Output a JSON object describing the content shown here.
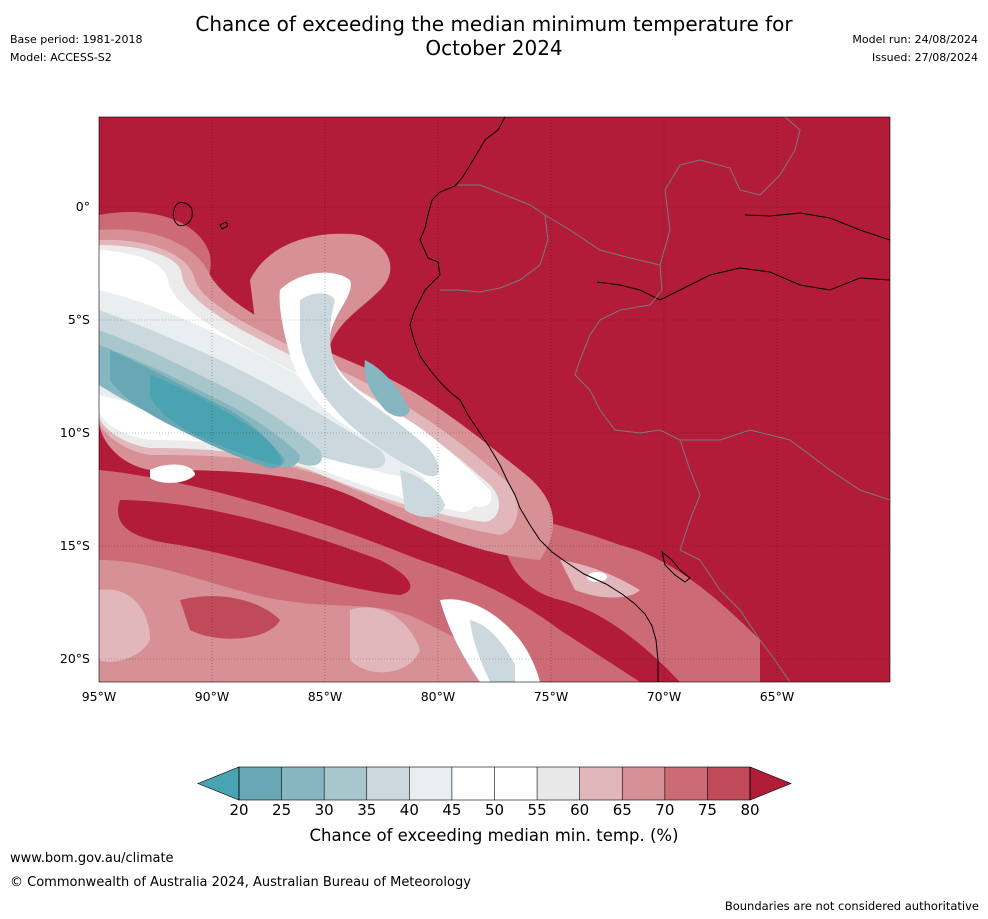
{
  "title": {
    "line1": "Chance of exceeding the median minimum temperature for",
    "line2": "October 2024"
  },
  "meta_left": {
    "base_period": "Base period: 1981-2018",
    "model": "Model: ACCESS-S2"
  },
  "meta_right": {
    "model_run": "Model run: 24/08/2024",
    "issued": "Issued: 27/08/2024"
  },
  "map": {
    "lat_labels": [
      "0°",
      "5°S",
      "10°S",
      "15°S",
      "20°S"
    ],
    "lon_labels": [
      "95°W",
      "90°W",
      "85°W",
      "80°W",
      "75°W",
      "70°W",
      "65°W"
    ],
    "colors": {
      "high": "#b31c39",
      "c75": "#c0495a",
      "c70": "#cc6a76",
      "c65": "#d79096",
      "c60": "#e2b7bb",
      "neutral": "#ececec",
      "white": "#ffffff",
      "c45": "#e9eef1",
      "c40": "#cbd9de",
      "c35": "#a8c7cc",
      "c30": "#86b6bf",
      "c25": "#68a8b4",
      "low": "#4aa3b0"
    }
  },
  "colorbar": {
    "ticks": [
      "20",
      "25",
      "30",
      "35",
      "40",
      "45",
      "50",
      "55",
      "60",
      "65",
      "70",
      "75",
      "80"
    ],
    "colors": [
      "#68a8b4",
      "#86b6bf",
      "#a8c7cc",
      "#cbd9de",
      "#e9eef1",
      "#ffffff",
      "#ffffff",
      "#e8e8e8",
      "#e2b7bb",
      "#d79096",
      "#cc6a76",
      "#c0495a"
    ],
    "under_color": "#4aa3b0",
    "over_color": "#b31c39",
    "label": "Chance of exceeding median min. temp. (%)"
  },
  "footer": {
    "url": "www.bom.gov.au/climate",
    "copyright": "© Commonwealth of Australia 2024, Australian Bureau of Meteorology",
    "note": "Boundaries are not considered authoritative"
  }
}
